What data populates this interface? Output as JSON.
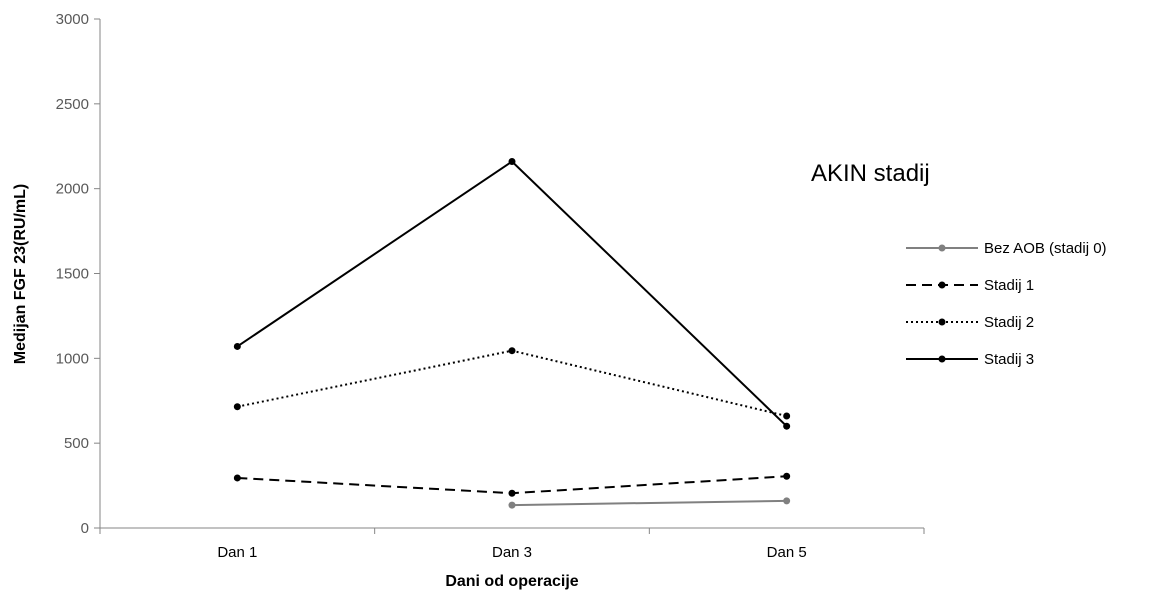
{
  "chart_data": {
    "type": "line",
    "title": "",
    "annotation": "AKIN stadij",
    "xlabel": "Dani od operacije",
    "ylabel": "Medijan FGF 23(RU/mL)",
    "categories": [
      "Dan 1",
      "Dan 3",
      "Dan 5"
    ],
    "ylim": [
      0,
      3000
    ],
    "yticks": [
      0,
      500,
      1000,
      1500,
      2000,
      2500,
      3000
    ],
    "grid": false,
    "legend_position": "right",
    "series": [
      {
        "name": "Bez AOB (stadij 0)",
        "values": [
          null,
          135,
          160
        ],
        "color": "#808080",
        "dash": "solid"
      },
      {
        "name": "Stadij 1",
        "values": [
          295,
          205,
          305
        ],
        "color": "#000000",
        "dash": "dashed"
      },
      {
        "name": "Stadij 2",
        "values": [
          715,
          1045,
          660
        ],
        "color": "#000000",
        "dash": "dotted"
      },
      {
        "name": "Stadij 3",
        "values": [
          1070,
          2160,
          600
        ],
        "color": "#000000",
        "dash": "solid"
      }
    ],
    "colors": {
      "axis": "#868686",
      "tick_text": "#595959"
    }
  }
}
